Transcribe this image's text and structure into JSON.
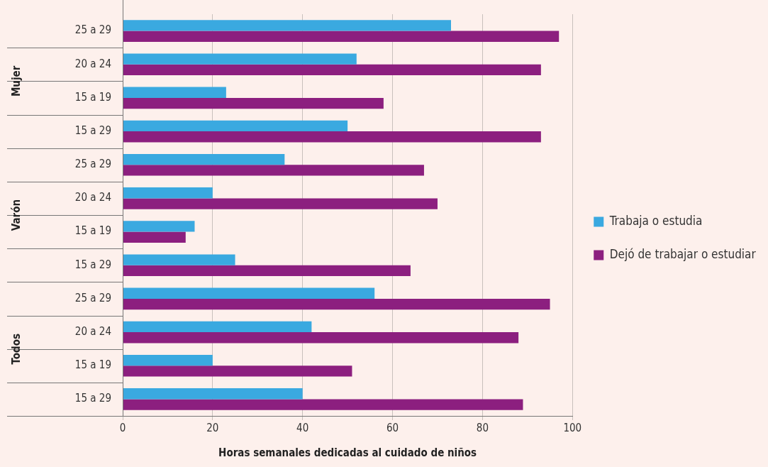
{
  "chart_data": {
    "type": "bar",
    "orientation": "horizontal",
    "xlabel": "Horas semanales dedicadas al cuidado de niños",
    "categories": [
      "25 a 29",
      "20 a 24",
      "15 a 19",
      "15 a 29",
      "25 a 29",
      "20 a 24",
      "15 a 19",
      "15 a 29",
      "25 a 29",
      "20 a 24",
      "15 a 19",
      "15 a 29"
    ],
    "annotations": [
      "Mujer",
      "Varón",
      "Todos"
    ],
    "series": [
      {
        "name": "Trabaja o estudia",
        "color": "#3aa9e0",
        "values": [
          73,
          52,
          23,
          50,
          36,
          20,
          16,
          25,
          56,
          42,
          20,
          40
        ]
      },
      {
        "name": "Dejó de trabajar o estudiar",
        "color": "#8c1f7f",
        "values": [
          97,
          93,
          58,
          93,
          67,
          70,
          14,
          64,
          95,
          88,
          51,
          89
        ]
      }
    ],
    "xlim": [
      0,
      100
    ],
    "xticks": [
      0,
      20,
      40,
      60,
      80,
      100
    ],
    "grid": "x",
    "legend": "right"
  }
}
